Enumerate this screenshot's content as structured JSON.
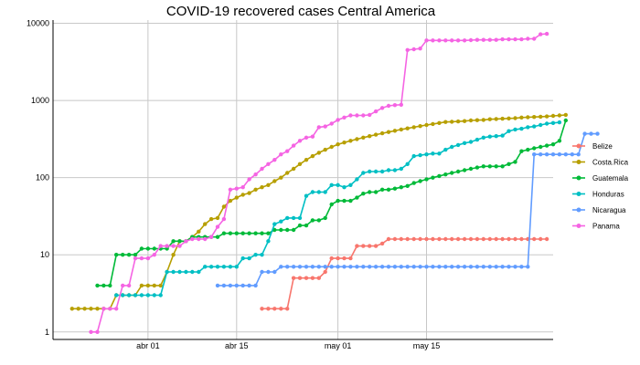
{
  "chart_data": {
    "type": "line",
    "title": "COVID-19 recovered cases Central America",
    "xlabel": "",
    "ylabel": "",
    "x_start": "2020-03-20",
    "x_range": [
      "2020-03-17",
      "2020-06-04"
    ],
    "x_ticks": [
      {
        "date": "2020-04-01",
        "label": "abr 01"
      },
      {
        "date": "2020-04-15",
        "label": "abr 15"
      },
      {
        "date": "2020-05-01",
        "label": "may 01"
      },
      {
        "date": "2020-05-15",
        "label": "may 15"
      }
    ],
    "y_scale": "log10",
    "ylim": [
      0.8,
      11000
    ],
    "y_ticks": [
      {
        "value": 1,
        "label": "1"
      },
      {
        "value": 10,
        "label": "10"
      },
      {
        "value": 100,
        "label": "100"
      },
      {
        "value": 1000,
        "label": "1000"
      },
      {
        "value": 10000,
        "label": "10000"
      }
    ],
    "grid": true,
    "legend_position": "right",
    "series": [
      {
        "name": "Belize",
        "color": "#F8766D",
        "start": "2020-04-19",
        "values": [
          2,
          2,
          2,
          2,
          2,
          5,
          5,
          5,
          5,
          5,
          6,
          9,
          9,
          9,
          9,
          13,
          13,
          13,
          13,
          14,
          16,
          16,
          16,
          16,
          16,
          16,
          16,
          16,
          16,
          16,
          16,
          16,
          16,
          16,
          16,
          16,
          16,
          16,
          16,
          16,
          16,
          16,
          16,
          16,
          16,
          16
        ]
      },
      {
        "name": "Costa.Rica",
        "color": "#B79F00",
        "start": "2020-03-20",
        "values": [
          2,
          2,
          2,
          2,
          2,
          2,
          2,
          3,
          3,
          3,
          3,
          4,
          4,
          4,
          4,
          6,
          10,
          15,
          15,
          17,
          20,
          25,
          29,
          30,
          42,
          50,
          55,
          60,
          63,
          70,
          75,
          80,
          90,
          100,
          115,
          130,
          150,
          170,
          190,
          210,
          230,
          250,
          270,
          285,
          300,
          315,
          330,
          345,
          360,
          375,
          390,
          405,
          420,
          435,
          450,
          465,
          480,
          495,
          510,
          525,
          530,
          535,
          540,
          550,
          555,
          560,
          570,
          575,
          580,
          585,
          590,
          600,
          605,
          610,
          615,
          620,
          630,
          640,
          650
        ]
      },
      {
        "name": "Guatemala",
        "color": "#00BA38",
        "start": "2020-03-24",
        "values": [
          4,
          4,
          4,
          10,
          10,
          10,
          10,
          12,
          12,
          12,
          12,
          12,
          15,
          15,
          15,
          17,
          17,
          17,
          17,
          17,
          19,
          19,
          19,
          19,
          19,
          19,
          19,
          19,
          21,
          21,
          21,
          21,
          24,
          24,
          28,
          28,
          30,
          45,
          50,
          50,
          50,
          55,
          62,
          65,
          65,
          70,
          70,
          72,
          75,
          78,
          85,
          90,
          95,
          100,
          105,
          110,
          115,
          120,
          125,
          130,
          135,
          140,
          140,
          140,
          140,
          150,
          160,
          220,
          230,
          240,
          250,
          260,
          270,
          300,
          550
        ]
      },
      {
        "name": "Honduras",
        "color": "#00BFC4",
        "start": "2020-03-27",
        "values": [
          3,
          3,
          3,
          3,
          3,
          3,
          3,
          3,
          6,
          6,
          6,
          6,
          6,
          6,
          7,
          7,
          7,
          7,
          7,
          7,
          9,
          9,
          10,
          10,
          15,
          25,
          27,
          30,
          30,
          30,
          58,
          65,
          65,
          65,
          80,
          80,
          75,
          80,
          95,
          115,
          120,
          120,
          120,
          125,
          125,
          130,
          150,
          190,
          195,
          200,
          205,
          205,
          230,
          250,
          265,
          280,
          290,
          310,
          330,
          340,
          345,
          350,
          400,
          420,
          430,
          450,
          460,
          480,
          500,
          510,
          520
        ]
      },
      {
        "name": "Nicaragua",
        "color": "#619CFF",
        "start": "2020-04-12",
        "values": [
          4,
          4,
          4,
          4,
          4,
          4,
          4,
          6,
          6,
          6,
          7,
          7,
          7,
          7,
          7,
          7,
          7,
          7,
          7,
          7,
          7,
          7,
          7,
          7,
          7,
          7,
          7,
          7,
          7,
          7,
          7,
          7,
          7,
          7,
          7,
          7,
          7,
          7,
          7,
          7,
          7,
          7,
          7,
          7,
          7,
          7,
          7,
          7,
          7,
          7,
          200,
          200,
          200,
          200,
          200,
          200,
          200,
          200,
          370,
          370,
          370
        ]
      },
      {
        "name": "Panama",
        "color": "#F564E3",
        "start": "2020-03-23",
        "values": [
          1,
          1,
          2,
          2,
          2,
          4,
          4,
          9,
          9,
          9,
          10,
          13,
          13,
          13,
          13,
          15,
          16,
          16,
          16,
          17,
          23,
          29,
          70,
          72,
          75,
          95,
          110,
          130,
          150,
          170,
          200,
          220,
          260,
          300,
          330,
          340,
          450,
          460,
          500,
          560,
          600,
          640,
          640,
          640,
          650,
          720,
          800,
          850,
          870,
          880,
          4500,
          4600,
          4700,
          6000,
          6000,
          6000,
          6000,
          6000,
          6000,
          6000,
          6050,
          6100,
          6100,
          6100,
          6100,
          6200,
          6200,
          6200,
          6200,
          6300,
          6300,
          7200,
          7300
        ]
      }
    ]
  }
}
